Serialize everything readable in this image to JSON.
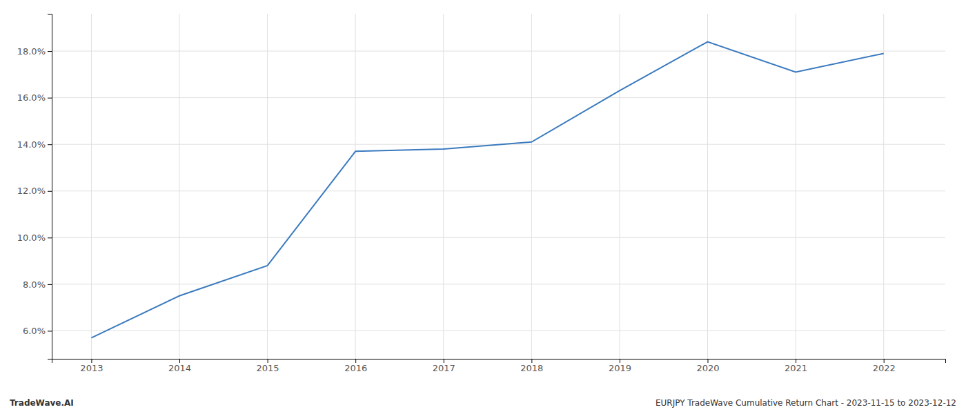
{
  "chart_data": {
    "type": "line",
    "x": [
      2013,
      2014,
      2015,
      2016,
      2017,
      2018,
      2019,
      2020,
      2021,
      2022
    ],
    "values": [
      0.057,
      0.075,
      0.088,
      0.137,
      0.138,
      0.141,
      0.163,
      0.184,
      0.171,
      0.179
    ],
    "color": "#3a7abf",
    "xlim": [
      2012.55,
      2022.7
    ],
    "ylim": [
      0.048,
      0.196
    ],
    "xticks": [
      2013,
      2014,
      2015,
      2016,
      2017,
      2018,
      2019,
      2020,
      2021,
      2022
    ],
    "yticks": [
      {
        "value": 0.06,
        "label": "6.0%"
      },
      {
        "value": 0.08,
        "label": "8.0%"
      },
      {
        "value": 0.1,
        "label": "10.0%"
      },
      {
        "value": 0.12,
        "label": "12.0%"
      },
      {
        "value": 0.14,
        "label": "14.0%"
      },
      {
        "value": 0.16,
        "label": "16.0%"
      },
      {
        "value": 0.18,
        "label": "18.0%"
      }
    ],
    "grid": true,
    "annotations": [
      "TradeWave.AI",
      "EURJPY TradeWave Cumulative Return Chart - 2023-11-15 to 2023-12-12"
    ]
  }
}
